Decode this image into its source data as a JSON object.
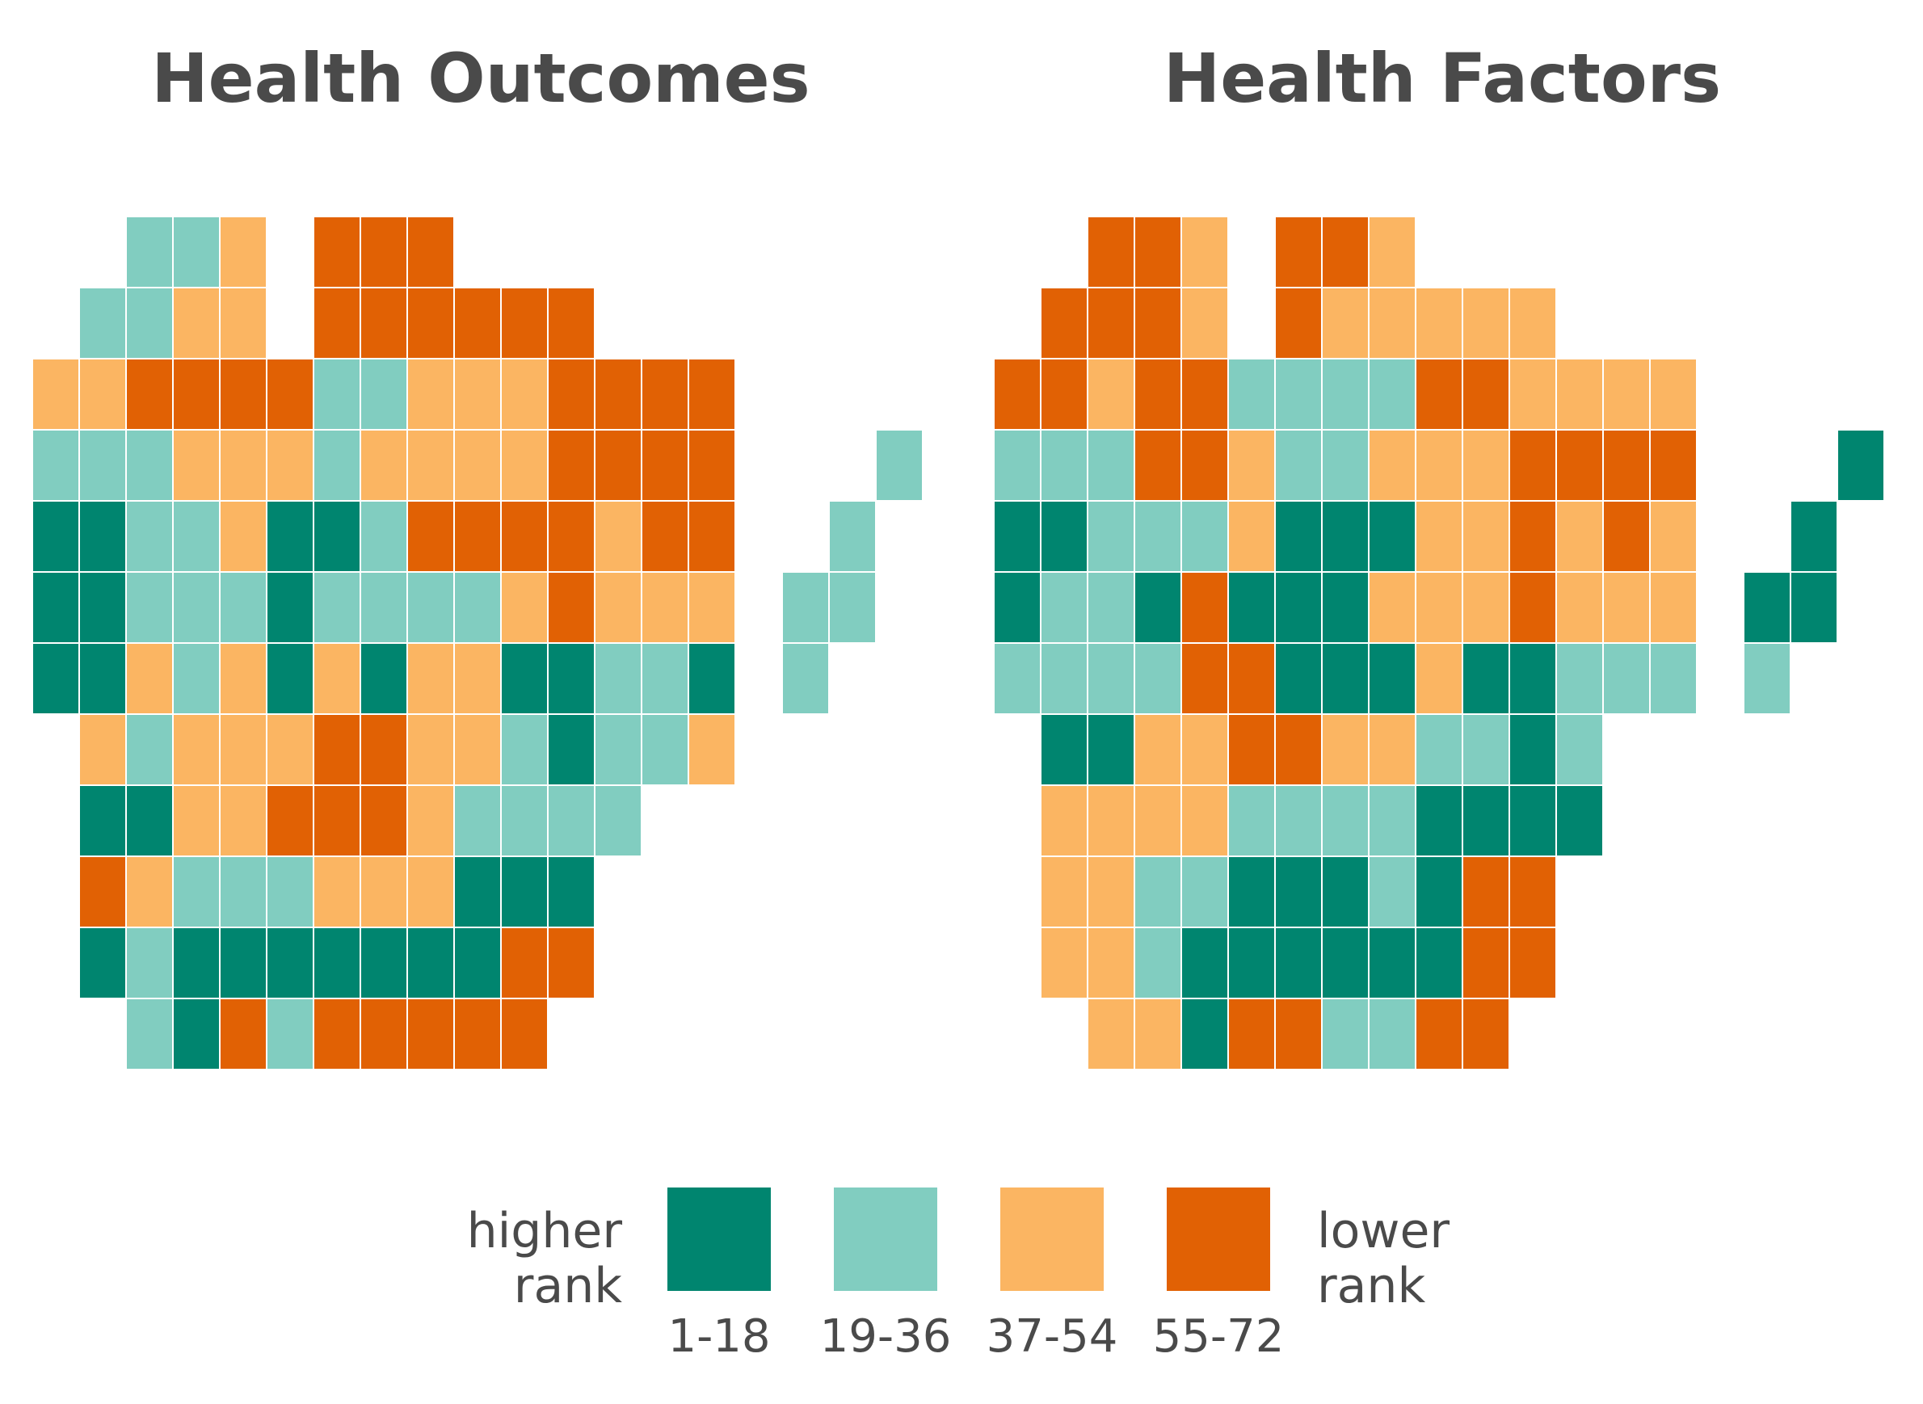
{
  "maps": [
    {
      "title": "Health Outcomes",
      "grid": [
        [
          null,
          null,
          null,
          null,
          null,
          null,
          null,
          null,
          null,
          null,
          null,
          null,
          null,
          null,
          null,
          null,
          null,
          null,
          null
        ],
        [
          null,
          null,
          1,
          1,
          2,
          null,
          3,
          3,
          3,
          null,
          null,
          null,
          null,
          null,
          null,
          null,
          null,
          null,
          null
        ],
        [
          null,
          1,
          1,
          2,
          2,
          null,
          3,
          3,
          3,
          3,
          3,
          3,
          null,
          null,
          null,
          null,
          null,
          null,
          null
        ],
        [
          2,
          2,
          3,
          3,
          3,
          3,
          1,
          1,
          2,
          2,
          2,
          3,
          3,
          3,
          3,
          null,
          null,
          null,
          null
        ],
        [
          1,
          1,
          1,
          2,
          2,
          2,
          1,
          2,
          2,
          2,
          2,
          3,
          3,
          3,
          3,
          null,
          null,
          null,
          1
        ],
        [
          0,
          0,
          1,
          1,
          2,
          0,
          0,
          1,
          3,
          3,
          3,
          3,
          2,
          3,
          3,
          null,
          null,
          1,
          null
        ],
        [
          0,
          0,
          1,
          1,
          1,
          0,
          1,
          1,
          1,
          1,
          2,
          3,
          2,
          2,
          2,
          null,
          1,
          1,
          null
        ],
        [
          0,
          0,
          2,
          1,
          2,
          0,
          2,
          0,
          2,
          2,
          0,
          0,
          1,
          1,
          0,
          null,
          1,
          null,
          null
        ],
        [
          null,
          2,
          1,
          2,
          2,
          2,
          3,
          3,
          2,
          2,
          1,
          0,
          1,
          1,
          2,
          null,
          null,
          null,
          null
        ],
        [
          null,
          0,
          0,
          2,
          2,
          3,
          3,
          3,
          2,
          1,
          1,
          1,
          1,
          null,
          null,
          null,
          null,
          null,
          null
        ],
        [
          null,
          3,
          2,
          1,
          1,
          1,
          2,
          2,
          2,
          0,
          0,
          0,
          null,
          null,
          null,
          null,
          null,
          null,
          null
        ],
        [
          null,
          0,
          1,
          0,
          0,
          0,
          0,
          0,
          0,
          0,
          3,
          3,
          null,
          null,
          null,
          null,
          null,
          null,
          null
        ],
        [
          null,
          null,
          1,
          0,
          3,
          1,
          3,
          3,
          3,
          3,
          3,
          null,
          null,
          null,
          null,
          null,
          null,
          null,
          null
        ]
      ]
    },
    {
      "title": "Health Factors",
      "grid": [
        [
          null,
          null,
          null,
          null,
          null,
          null,
          null,
          null,
          null,
          null,
          null,
          null,
          null,
          null,
          null,
          null,
          null,
          null,
          null
        ],
        [
          null,
          null,
          3,
          3,
          2,
          null,
          3,
          3,
          2,
          null,
          null,
          null,
          null,
          null,
          null,
          null,
          null,
          null,
          null
        ],
        [
          null,
          3,
          3,
          3,
          2,
          null,
          3,
          2,
          2,
          2,
          2,
          2,
          null,
          null,
          null,
          null,
          null,
          null,
          null
        ],
        [
          3,
          3,
          2,
          3,
          3,
          1,
          1,
          1,
          1,
          3,
          3,
          2,
          2,
          2,
          2,
          null,
          null,
          null,
          null
        ],
        [
          1,
          1,
          1,
          3,
          3,
          2,
          1,
          1,
          2,
          2,
          2,
          3,
          3,
          3,
          3,
          null,
          null,
          null,
          0
        ],
        [
          0,
          0,
          1,
          1,
          1,
          2,
          0,
          0,
          0,
          2,
          2,
          3,
          2,
          3,
          2,
          null,
          null,
          0,
          null
        ],
        [
          0,
          1,
          1,
          0,
          3,
          0,
          0,
          0,
          2,
          2,
          2,
          3,
          2,
          2,
          2,
          null,
          0,
          0,
          null
        ],
        [
          1,
          1,
          1,
          1,
          3,
          3,
          0,
          0,
          0,
          2,
          0,
          0,
          1,
          1,
          1,
          null,
          1,
          null,
          null
        ],
        [
          null,
          0,
          0,
          2,
          2,
          3,
          3,
          2,
          2,
          1,
          1,
          0,
          1,
          null,
          null,
          null,
          null,
          null,
          null
        ],
        [
          null,
          2,
          2,
          2,
          2,
          1,
          1,
          1,
          1,
          0,
          0,
          0,
          0,
          null,
          null,
          null,
          null,
          null,
          null
        ],
        [
          null,
          2,
          2,
          1,
          1,
          0,
          0,
          0,
          1,
          0,
          3,
          3,
          null,
          null,
          null,
          null,
          null,
          null,
          null
        ],
        [
          null,
          2,
          2,
          1,
          0,
          0,
          0,
          0,
          0,
          0,
          3,
          3,
          null,
          null,
          null,
          null,
          null,
          null,
          null
        ],
        [
          null,
          null,
          2,
          2,
          0,
          3,
          3,
          1,
          1,
          3,
          3,
          null,
          null,
          null,
          null,
          null,
          null,
          null,
          null
        ]
      ]
    }
  ],
  "colors": [
    "#00856f",
    "#81cdc0",
    "#fbb562",
    "#e16104"
  ],
  "legend": {
    "left_line1": "higher",
    "left_line2": "rank",
    "right_line1": "lower",
    "right_line2": "rank",
    "items": [
      {
        "label": "1-18",
        "color": "#00856f"
      },
      {
        "label": "19-36",
        "color": "#81cdc0"
      },
      {
        "label": "37-54",
        "color": "#fbb562"
      },
      {
        "label": "55-72",
        "color": "#e16104"
      }
    ]
  }
}
